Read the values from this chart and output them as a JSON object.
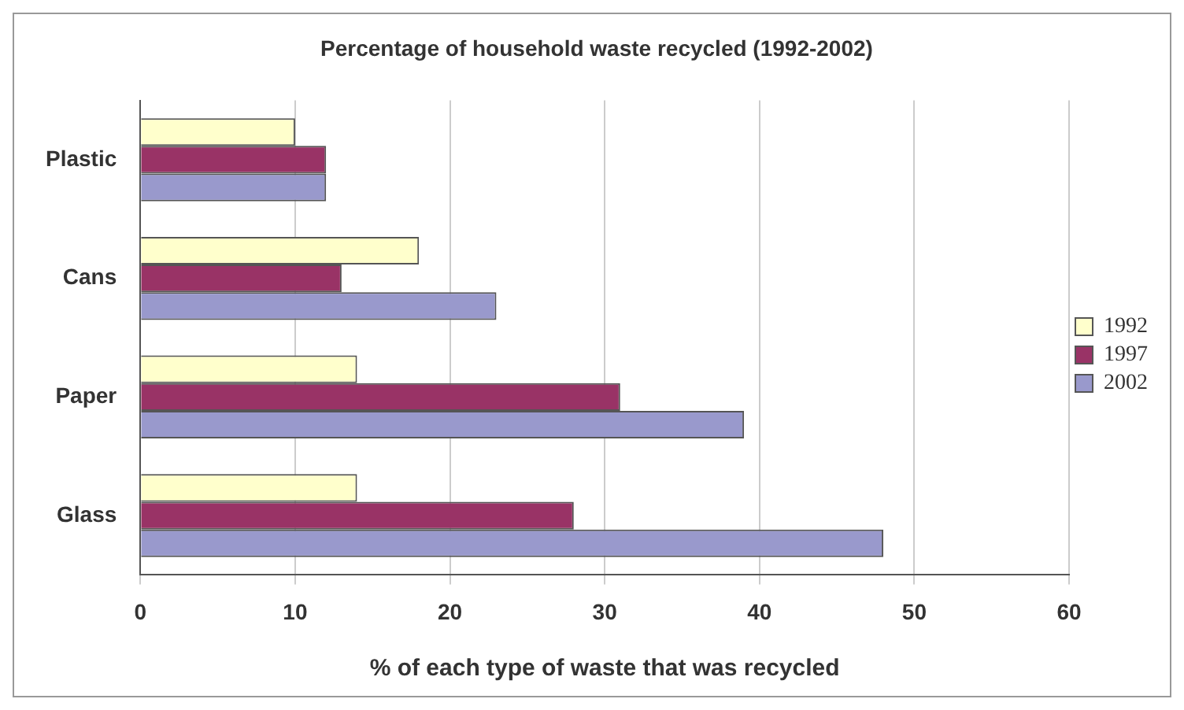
{
  "chart_data": {
    "type": "bar",
    "orientation": "horizontal",
    "title": "Percentage of household waste recycled (1992-2002)",
    "xlabel": "% of each type of waste that was recycled",
    "categories": [
      "Plastic",
      "Cans",
      "Paper",
      "Glass"
    ],
    "series": [
      {
        "name": "1992",
        "color": "#ffffcc",
        "values": [
          10,
          18,
          14,
          14
        ]
      },
      {
        "name": "1997",
        "color": "#993366",
        "values": [
          12,
          13,
          31,
          28
        ]
      },
      {
        "name": "2002",
        "color": "#9999cc",
        "values": [
          12,
          23,
          39,
          48
        ]
      }
    ],
    "xlim": [
      0,
      60
    ],
    "xticks": [
      0,
      10,
      20,
      30,
      40,
      50,
      60
    ],
    "grid": "x",
    "legend": "right"
  }
}
